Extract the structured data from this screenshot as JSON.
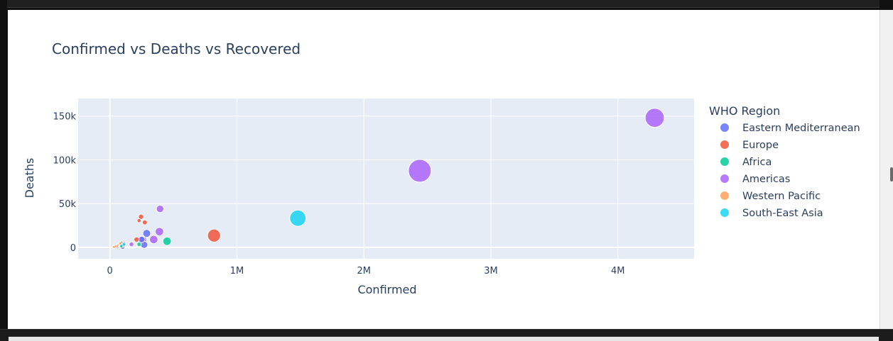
{
  "chart_data": {
    "type": "scatter",
    "title": "Confirmed vs Deaths vs Recovered",
    "xlabel": "Confirmed",
    "ylabel": "Deaths",
    "xlim": [
      -250000,
      4600000
    ],
    "ylim": [
      -13000,
      170000
    ],
    "x_ticks": [
      {
        "v": 0,
        "label": "0"
      },
      {
        "v": 1000000,
        "label": "1M"
      },
      {
        "v": 2000000,
        "label": "2M"
      },
      {
        "v": 3000000,
        "label": "3M"
      },
      {
        "v": 4000000,
        "label": "4M"
      }
    ],
    "y_ticks": [
      {
        "v": 0,
        "label": "0"
      },
      {
        "v": 50000,
        "label": "50k"
      },
      {
        "v": 100000,
        "label": "100k"
      },
      {
        "v": 150000,
        "label": "150k"
      }
    ],
    "grid": true,
    "legend": {
      "title": "WHO Region",
      "position": "right"
    },
    "series": [
      {
        "name": "Eastern Mediterranean",
        "color": "#636efa",
        "points": [
          {
            "x": 290000,
            "y": 16000,
            "size": 220000
          },
          {
            "x": 270000,
            "y": 3000,
            "size": 180000
          },
          {
            "x": 250000,
            "y": 9000,
            "size": 150000
          },
          {
            "x": 110000,
            "y": 4000,
            "size": 90000
          },
          {
            "x": 100000,
            "y": 500,
            "size": 80000
          },
          {
            "x": 60000,
            "y": 300,
            "size": 40000
          }
        ]
      },
      {
        "name": "Europe",
        "color": "#ef553b",
        "points": [
          {
            "x": 820000,
            "y": 13500,
            "size": 600000
          },
          {
            "x": 245000,
            "y": 35000,
            "size": 100000
          },
          {
            "x": 275000,
            "y": 28500,
            "size": 90000
          },
          {
            "x": 230000,
            "y": 30500,
            "size": 60000
          },
          {
            "x": 210000,
            "y": 9000,
            "size": 100000
          },
          {
            "x": 90000,
            "y": 5000,
            "size": 50000
          },
          {
            "x": 60000,
            "y": 2000,
            "size": 40000
          },
          {
            "x": 40000,
            "y": 1000,
            "size": 30000
          }
        ]
      },
      {
        "name": "Africa",
        "color": "#00cc96",
        "points": [
          {
            "x": 450000,
            "y": 7000,
            "size": 250000
          },
          {
            "x": 230000,
            "y": 3500,
            "size": 70000
          },
          {
            "x": 90000,
            "y": 1500,
            "size": 40000
          }
        ]
      },
      {
        "name": "Americas",
        "color": "#ab63fa",
        "points": [
          {
            "x": 4290000,
            "y": 148000,
            "size": 1300000
          },
          {
            "x": 2440000,
            "y": 87500,
            "size": 1850000
          },
          {
            "x": 395000,
            "y": 44000,
            "size": 200000
          },
          {
            "x": 390000,
            "y": 18000,
            "size": 250000
          },
          {
            "x": 345000,
            "y": 9000,
            "size": 250000
          },
          {
            "x": 260000,
            "y": 8500,
            "size": 200000
          },
          {
            "x": 170000,
            "y": 3500,
            "size": 80000
          },
          {
            "x": 110000,
            "y": 2500,
            "size": 60000
          }
        ]
      },
      {
        "name": "Western Pacific",
        "color": "#ffa15a",
        "points": [
          {
            "x": 80000,
            "y": 4600,
            "size": 30000
          },
          {
            "x": 55000,
            "y": 1000,
            "size": 35000
          },
          {
            "x": 30000,
            "y": 500,
            "size": 20000
          }
        ]
      },
      {
        "name": "South-East Asia",
        "color": "#19d3f3",
        "points": [
          {
            "x": 1480000,
            "y": 33400,
            "size": 950000
          },
          {
            "x": 110000,
            "y": 3500,
            "size": 50000
          }
        ]
      }
    ]
  }
}
